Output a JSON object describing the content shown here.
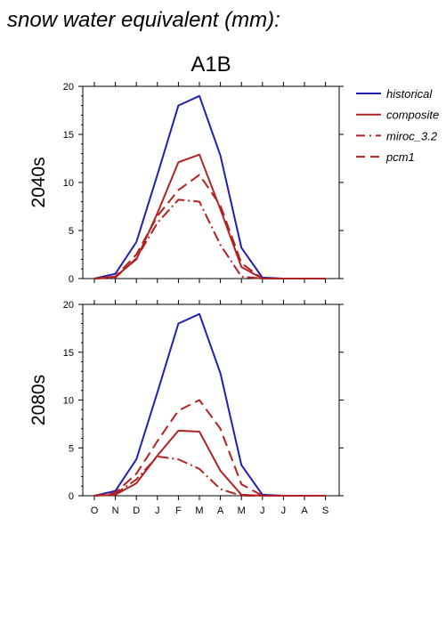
{
  "heading": "snow water equivalent (mm):",
  "chart_data": {
    "type": "line",
    "title": "A1B",
    "x": [
      "O",
      "N",
      "D",
      "J",
      "F",
      "M",
      "A",
      "M",
      "J",
      "J",
      "A",
      "S"
    ],
    "ylim": [
      0,
      20
    ],
    "yticks": [
      0,
      5,
      10,
      15,
      20
    ],
    "legend_position": "right",
    "legend": [
      {
        "name": "historical",
        "color": "#1f1fb4",
        "dash": "solid"
      },
      {
        "name": "composite",
        "color": "#b22222",
        "dash": "solid"
      },
      {
        "name": "miroc_3.2",
        "color": "#b22222",
        "dash": "dashdot"
      },
      {
        "name": "pcm1",
        "color": "#b22222",
        "dash": "dashed"
      }
    ],
    "panels": [
      {
        "label": "2040s",
        "series": [
          {
            "name": "historical",
            "values": [
              0,
              0.5,
              3.8,
              10.8,
              18.0,
              19.0,
              12.8,
              3.2,
              0.1,
              0,
              0,
              0
            ]
          },
          {
            "name": "composite",
            "values": [
              0,
              0.2,
              2.0,
              6.8,
              12.1,
              12.9,
              7.2,
              1.2,
              0,
              0,
              0,
              0
            ]
          },
          {
            "name": "miroc_3.2",
            "values": [
              0,
              0.1,
              2.1,
              5.8,
              8.2,
              8.0,
              3.5,
              0.2,
              0,
              0,
              0,
              0
            ]
          },
          {
            "name": "pcm1",
            "values": [
              0,
              0.2,
              2.5,
              6.5,
              9.2,
              10.8,
              7.6,
              1.6,
              0,
              0,
              0,
              0
            ]
          }
        ]
      },
      {
        "label": "2080s",
        "series": [
          {
            "name": "historical",
            "values": [
              0,
              0.5,
              3.8,
              10.8,
              18.0,
              19.0,
              12.8,
              3.2,
              0.1,
              0,
              0,
              0
            ]
          },
          {
            "name": "composite",
            "values": [
              0,
              0.1,
              1.3,
              4.2,
              6.8,
              6.7,
              2.6,
              0.1,
              0,
              0,
              0,
              0
            ]
          },
          {
            "name": "miroc_3.2",
            "values": [
              0,
              0.2,
              1.7,
              4.1,
              3.8,
              2.8,
              0.7,
              0,
              0,
              0,
              0,
              0
            ]
          },
          {
            "name": "pcm1",
            "values": [
              0,
              0.3,
              2.3,
              5.7,
              8.9,
              10.0,
              7.0,
              1.2,
              0,
              0,
              0,
              0
            ]
          }
        ]
      }
    ]
  }
}
